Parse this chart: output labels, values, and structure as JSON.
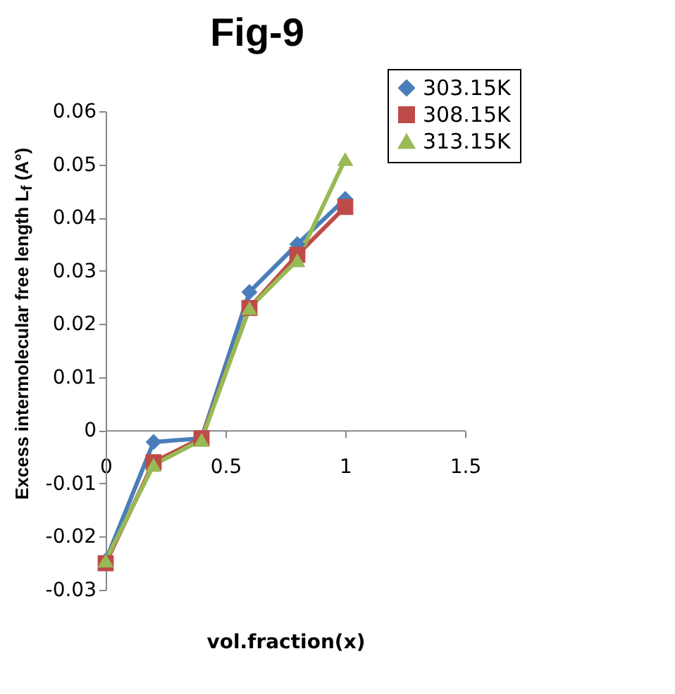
{
  "chart_data": {
    "type": "line",
    "title": "Fig-9",
    "xlabel": "vol.fraction(x)",
    "ylabel": "Excess intermolecular free length L$_{f}$ (A°)",
    "x": [
      0,
      0.2,
      0.4,
      0.6,
      0.8,
      1
    ],
    "series": [
      {
        "name": "303.15K",
        "color": "#4a7ebb",
        "marker": "diamond",
        "values": [
          -0.0245,
          -0.0022,
          -0.0015,
          0.026,
          0.035,
          0.0435
        ]
      },
      {
        "name": "308.15K",
        "color": "#be4b48",
        "marker": "square",
        "values": [
          -0.025,
          -0.006,
          -0.0015,
          0.023,
          0.033,
          0.042
        ]
      },
      {
        "name": "313.15K",
        "color": "#98b954",
        "marker": "triangle",
        "values": [
          -0.0245,
          -0.0065,
          -0.0018,
          0.023,
          0.032,
          0.051
        ]
      }
    ],
    "xlim": [
      0,
      1.5
    ],
    "xticks": [
      0,
      0.5,
      1,
      1.5
    ],
    "ylim": [
      -0.03,
      0.06
    ],
    "yticks": [
      -0.03,
      -0.02,
      -0.01,
      0,
      0.01,
      0.02,
      0.03,
      0.04,
      0.05,
      0.06
    ],
    "grid": false,
    "legend": "top right"
  }
}
